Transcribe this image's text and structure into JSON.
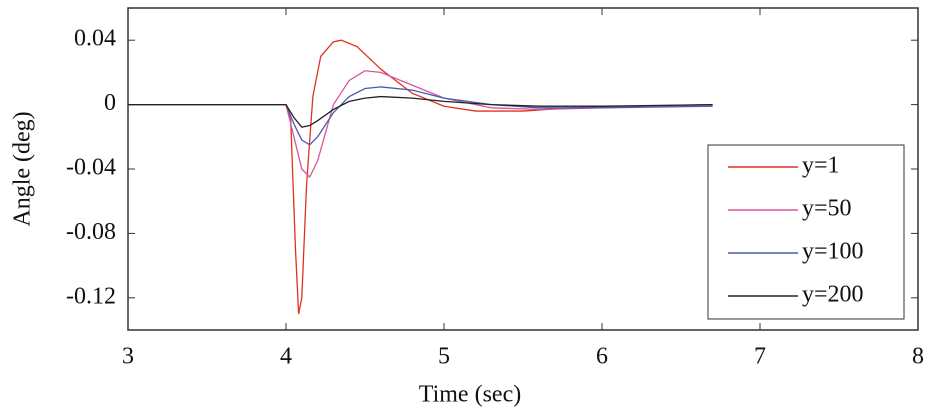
{
  "chart_data": {
    "type": "line",
    "x_label": "Time (sec)",
    "y_label": "Angle (deg)",
    "xlim": [
      3,
      8
    ],
    "xticks": [
      3,
      4,
      5,
      6,
      7,
      8
    ],
    "ylim": [
      -0.14,
      0.06
    ],
    "yticks": [
      -0.12,
      -0.08,
      -0.04,
      0,
      0.04
    ],
    "legend": "right",
    "series": [
      {
        "name": "y=1",
        "color": "#e0301e",
        "x": [
          3,
          4,
          4.03,
          4.06,
          4.08,
          4.1,
          4.13,
          4.17,
          4.22,
          4.3,
          4.35,
          4.45,
          4.6,
          4.8,
          5.0,
          5.2,
          5.5,
          5.8,
          6.2,
          6.7
        ],
        "values": [
          0,
          0,
          -0.01,
          -0.09,
          -0.13,
          -0.12,
          -0.05,
          0.005,
          0.03,
          0.039,
          0.04,
          0.036,
          0.022,
          0.007,
          -0.001,
          -0.004,
          -0.004,
          -0.002,
          -0.001,
          0
        ]
      },
      {
        "name": "y=50",
        "color": "#d9559a",
        "x": [
          3,
          4,
          4.05,
          4.1,
          4.15,
          4.2,
          4.3,
          4.4,
          4.5,
          4.6,
          4.8,
          5.0,
          5.3,
          5.6,
          6.0,
          6.7
        ],
        "values": [
          0,
          0,
          -0.02,
          -0.04,
          -0.045,
          -0.035,
          0,
          0.015,
          0.021,
          0.02,
          0.012,
          0.004,
          -0.002,
          -0.003,
          -0.002,
          0
        ]
      },
      {
        "name": "y=100",
        "color": "#4a5bb0",
        "x": [
          3,
          4,
          4.05,
          4.1,
          4.15,
          4.2,
          4.3,
          4.4,
          4.5,
          4.6,
          4.8,
          5.0,
          5.3,
          5.6,
          6.0,
          6.7
        ],
        "values": [
          0,
          0,
          -0.012,
          -0.022,
          -0.025,
          -0.02,
          -0.005,
          0.005,
          0.01,
          0.011,
          0.009,
          0.004,
          0,
          -0.002,
          -0.002,
          -0.001
        ]
      },
      {
        "name": "y=200",
        "color": "#222222",
        "x": [
          3,
          4,
          4.05,
          4.1,
          4.15,
          4.2,
          4.3,
          4.4,
          4.5,
          4.6,
          4.8,
          5.0,
          5.3,
          5.6,
          6.0,
          6.7
        ],
        "values": [
          0,
          0,
          -0.008,
          -0.014,
          -0.013,
          -0.01,
          -0.003,
          0.002,
          0.004,
          0.005,
          0.004,
          0.002,
          0,
          -0.001,
          -0.001,
          0
        ]
      }
    ]
  }
}
